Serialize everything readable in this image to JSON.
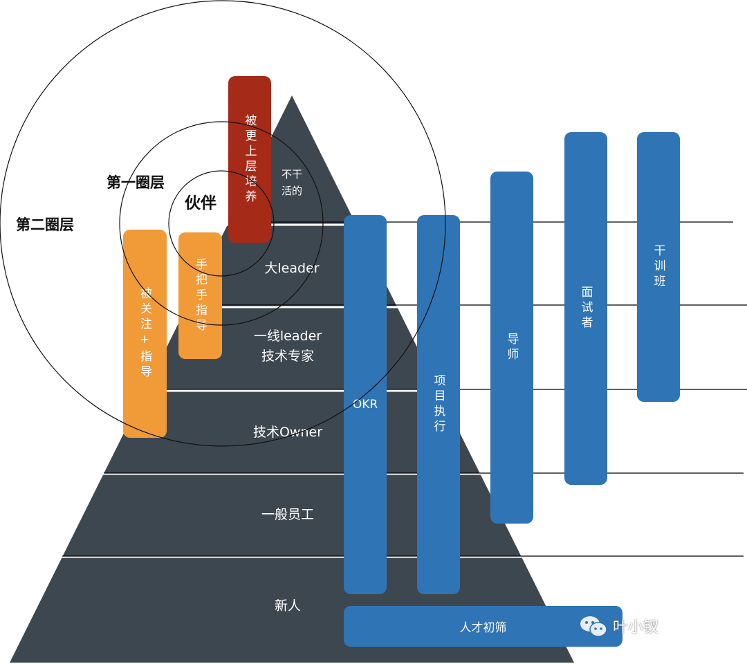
{
  "pyramid": {
    "color": "#3d4750",
    "tiers": [
      {
        "label": "不干\n活的"
      },
      {
        "label": "大leader"
      },
      {
        "label": "一线leader\n技术专家"
      },
      {
        "label": "技术Owner"
      },
      {
        "label": "一般员工"
      },
      {
        "label": "新人"
      }
    ]
  },
  "circles": {
    "outer_label": "第二圈层",
    "middle_label": "第一圈层",
    "inner_label": "伙伴"
  },
  "tags": {
    "upper_training": {
      "label": "被更上层培养",
      "color": "#a52a18"
    },
    "attention_guidance": {
      "label": "被关注+指导",
      "color": "#f09a38"
    },
    "hands_on_guidance": {
      "label": "手把手指导",
      "color": "#f09a38"
    }
  },
  "mechanisms": {
    "color": "#2f74b5",
    "okr": "OKR",
    "project_execution": "项目执行",
    "mentor": "导师",
    "interviewer": "面试者",
    "training_class": "干训班",
    "talent_screening": "人才初筛"
  },
  "watermark": {
    "text": "叶小钗",
    "icon": "wechat-icon"
  }
}
